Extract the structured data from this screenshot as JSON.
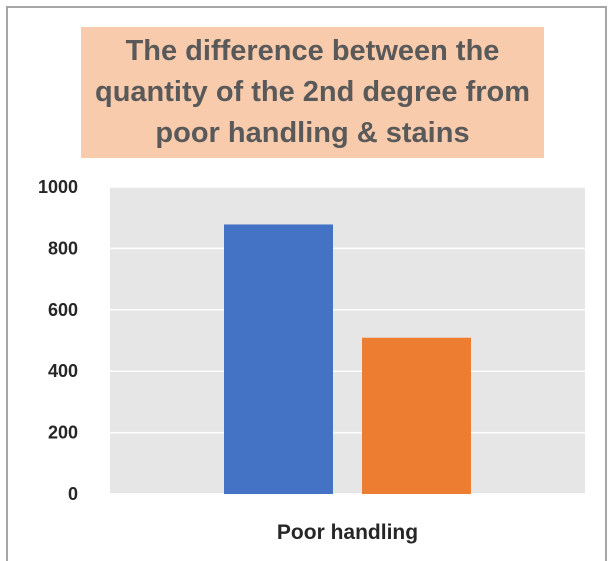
{
  "chart_data": {
    "type": "bar",
    "title": "The difference between the quantity of the 2nd degree from poor handling & stains",
    "categories": [
      "Poor handling"
    ],
    "series": [
      {
        "values": [
          878
        ],
        "color": "#4472c4"
      },
      {
        "values": [
          509
        ],
        "color": "#ed7d31"
      }
    ],
    "yticks": [
      0,
      200,
      400,
      600,
      800,
      1000
    ],
    "ylim": [
      0,
      1000
    ],
    "xlabel": "",
    "ylabel": "",
    "grid": true,
    "plot_background": "#e7e6e6",
    "gridline_color": "#ffffff"
  }
}
